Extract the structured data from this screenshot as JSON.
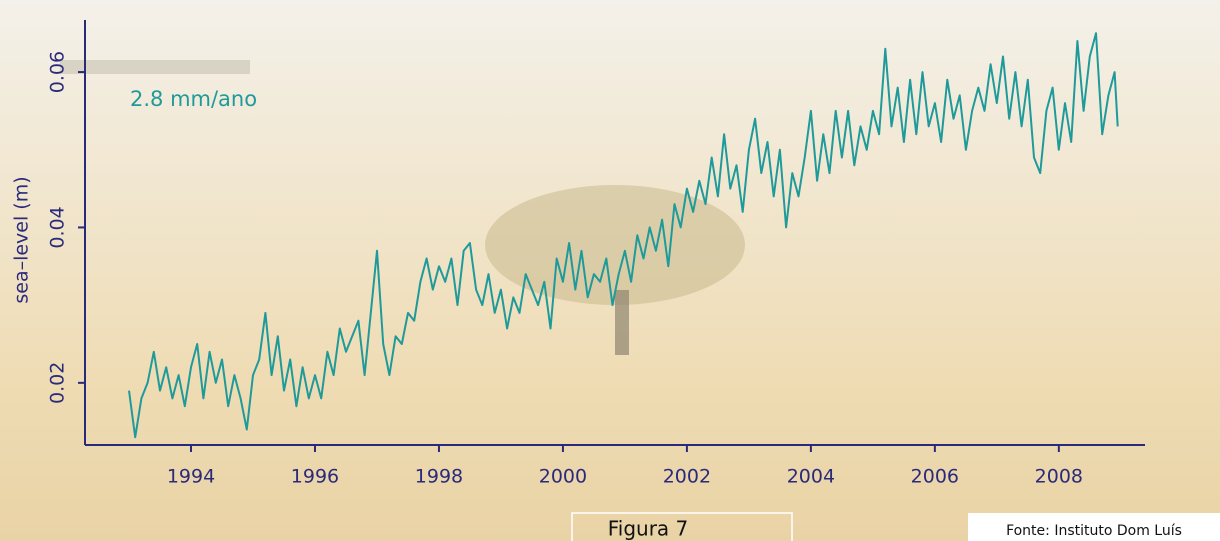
{
  "chart_data": {
    "type": "line",
    "annotation": "2.8 mm/ano",
    "y_label": "sea–level (m)",
    "caption": "Figura 7",
    "source": "Fonte: Instituto Dom Luís",
    "color": "#1f9a9a",
    "xlim": [
      1992.29,
      2009.39
    ],
    "ylim": [
      0.012,
      0.0667
    ],
    "xticks": [
      1994,
      1996,
      1998,
      2000,
      2002,
      2004,
      2006,
      2008
    ],
    "yticks": [
      0.02,
      0.04,
      0.06
    ],
    "x": [
      1993.0,
      1993.1,
      1993.2,
      1993.3,
      1993.4,
      1993.5,
      1993.6,
      1993.7,
      1993.8,
      1993.9,
      1994.0,
      1994.1,
      1994.2,
      1994.3,
      1994.4,
      1994.5,
      1994.6,
      1994.7,
      1994.8,
      1994.9,
      1995.0,
      1995.1,
      1995.2,
      1995.3,
      1995.4,
      1995.5,
      1995.6,
      1995.7,
      1995.8,
      1995.9,
      1996.0,
      1996.1,
      1996.2,
      1996.3,
      1996.4,
      1996.5,
      1996.6,
      1996.7,
      1996.8,
      1996.9,
      1997.0,
      1997.1,
      1997.2,
      1997.3,
      1997.4,
      1997.5,
      1997.6,
      1997.7,
      1997.8,
      1997.9,
      1998.0,
      1998.1,
      1998.2,
      1998.3,
      1998.4,
      1998.5,
      1998.6,
      1998.7,
      1998.8,
      1998.9,
      1999.0,
      1999.1,
      1999.2,
      1999.3,
      1999.4,
      1999.5,
      1999.6,
      1999.7,
      1999.8,
      1999.9,
      2000.0,
      2000.1,
      2000.2,
      2000.3,
      2000.4,
      2000.5,
      2000.6,
      2000.7,
      2000.8,
      2000.9,
      2001.0,
      2001.1,
      2001.2,
      2001.3,
      2001.4,
      2001.5,
      2001.6,
      2001.7,
      2001.8,
      2001.9,
      2002.0,
      2002.1,
      2002.2,
      2002.3,
      2002.4,
      2002.5,
      2002.6,
      2002.7,
      2002.8,
      2002.9,
      2003.0,
      2003.1,
      2003.2,
      2003.3,
      2003.4,
      2003.5,
      2003.6,
      2003.7,
      2003.8,
      2003.9,
      2004.0,
      2004.1,
      2004.2,
      2004.3,
      2004.4,
      2004.5,
      2004.6,
      2004.7,
      2004.8,
      2004.9,
      2005.0,
      2005.1,
      2005.2,
      2005.3,
      2005.4,
      2005.5,
      2005.6,
      2005.7,
      2005.8,
      2005.9,
      2006.0,
      2006.1,
      2006.2,
      2006.3,
      2006.4,
      2006.5,
      2006.6,
      2006.7,
      2006.8,
      2006.9,
      2007.0,
      2007.1,
      2007.2,
      2007.3,
      2007.4,
      2007.5,
      2007.6,
      2007.7,
      2007.8,
      2007.9,
      2008.0,
      2008.1,
      2008.2,
      2008.3,
      2008.4,
      2008.5,
      2008.6,
      2008.7,
      2008.8,
      2008.9,
      2008.95
    ],
    "values": [
      0.019,
      0.013,
      0.018,
      0.02,
      0.024,
      0.019,
      0.022,
      0.018,
      0.021,
      0.017,
      0.022,
      0.025,
      0.018,
      0.024,
      0.02,
      0.023,
      0.017,
      0.021,
      0.018,
      0.014,
      0.021,
      0.023,
      0.029,
      0.021,
      0.026,
      0.019,
      0.023,
      0.017,
      0.022,
      0.018,
      0.021,
      0.018,
      0.024,
      0.021,
      0.027,
      0.024,
      0.026,
      0.028,
      0.021,
      0.029,
      0.037,
      0.025,
      0.021,
      0.026,
      0.025,
      0.029,
      0.028,
      0.033,
      0.036,
      0.032,
      0.035,
      0.033,
      0.036,
      0.03,
      0.037,
      0.038,
      0.032,
      0.03,
      0.034,
      0.029,
      0.032,
      0.027,
      0.031,
      0.029,
      0.034,
      0.032,
      0.03,
      0.033,
      0.027,
      0.036,
      0.033,
      0.038,
      0.032,
      0.037,
      0.031,
      0.034,
      0.033,
      0.036,
      0.03,
      0.034,
      0.037,
      0.033,
      0.039,
      0.036,
      0.04,
      0.037,
      0.041,
      0.035,
      0.043,
      0.04,
      0.045,
      0.042,
      0.046,
      0.043,
      0.049,
      0.044,
      0.052,
      0.045,
      0.048,
      0.042,
      0.05,
      0.054,
      0.047,
      0.051,
      0.044,
      0.05,
      0.04,
      0.047,
      0.044,
      0.049,
      0.055,
      0.046,
      0.052,
      0.047,
      0.055,
      0.049,
      0.055,
      0.048,
      0.053,
      0.05,
      0.055,
      0.052,
      0.063,
      0.053,
      0.058,
      0.051,
      0.059,
      0.052,
      0.06,
      0.053,
      0.056,
      0.051,
      0.059,
      0.054,
      0.057,
      0.05,
      0.055,
      0.058,
      0.055,
      0.061,
      0.056,
      0.062,
      0.054,
      0.06,
      0.053,
      0.059,
      0.049,
      0.047,
      0.055,
      0.058,
      0.05,
      0.056,
      0.051,
      0.064,
      0.055,
      0.062,
      0.065,
      0.052,
      0.057,
      0.06,
      0.053
    ]
  }
}
